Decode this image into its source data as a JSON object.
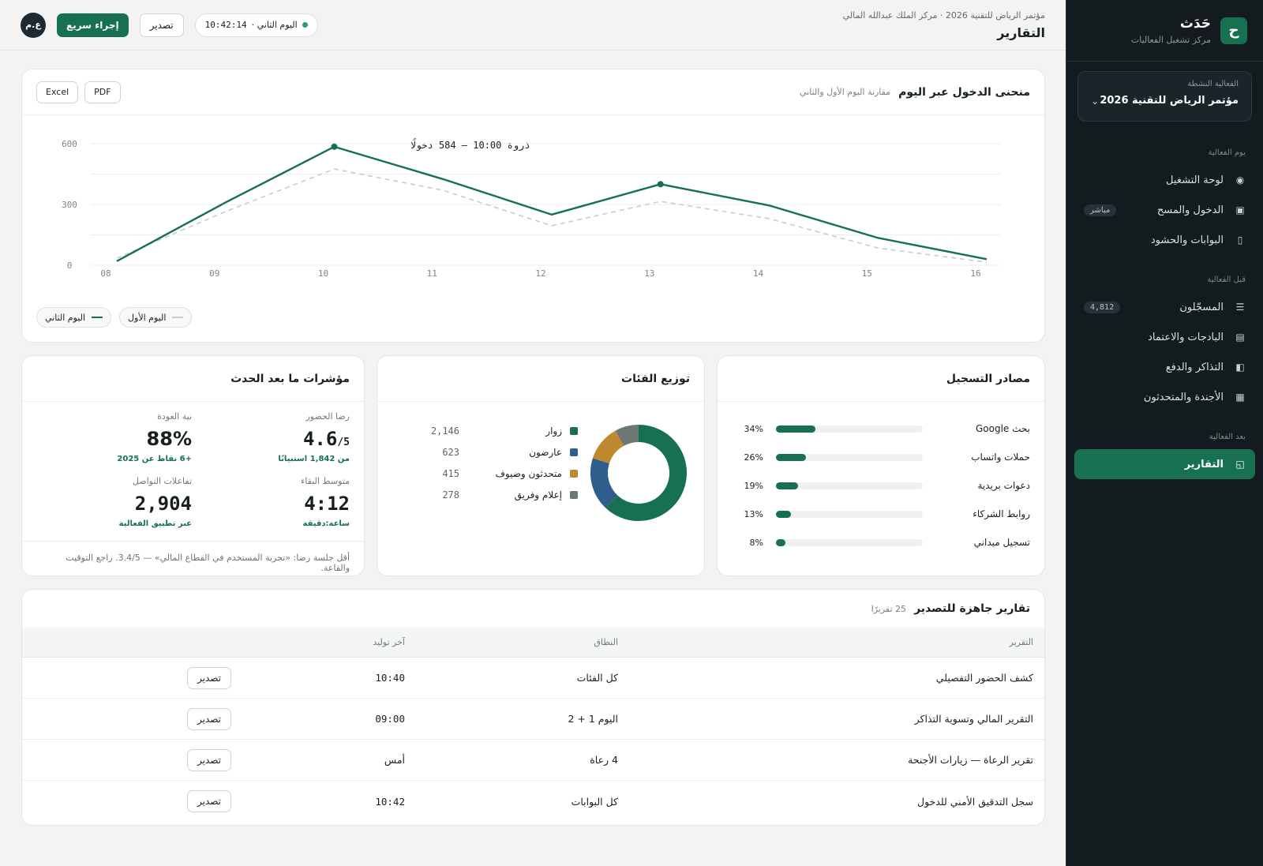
{
  "brand": {
    "logo_letter": "ح",
    "name": "حَدَث",
    "subtitle": "مركز تشغيل الفعاليات"
  },
  "event_select": {
    "label": "الفعالية النشطة",
    "value": "مؤتمر الرياض للتقنية 2026"
  },
  "nav": {
    "group_day": "يوم الفعالية",
    "group_before": "قبل الفعالية",
    "group_after": "بعد الفعالية",
    "dashboard": "لوحة التشغيل",
    "entry": "الدخول والمسح",
    "entry_badge": "مباشر",
    "gates": "البوابات والحشود",
    "registrants": "المسجّلون",
    "registrants_badge": "4,812",
    "badges": "البادجات والاعتماد",
    "tickets": "التذاكر والدفع",
    "agenda": "الأجندة والمتحدثون",
    "reports": "التقارير"
  },
  "topbar": {
    "breadcrumb": "مؤتمر الرياض للتقنية 2026 · مركز الملك عبدالله المالي",
    "title": "التقارير",
    "live_day": "اليوم الثاني ·",
    "live_time": "10:42:14",
    "export_label": "تصدير",
    "quick_action_label": "إجراء سريع",
    "avatar_initials": "ع.م"
  },
  "entry_chart": {
    "title": "منحنى الدخول عبر اليوم",
    "subtitle": "مقارنة اليوم الأول والثاني",
    "pdf_label": "PDF",
    "excel_label": "Excel",
    "peak_annotation": "ذروة 10:00 — 584 دخولًا",
    "legend_day2": "اليوم الثاني",
    "legend_day1": "اليوم الأول"
  },
  "chart_data": {
    "type": "line",
    "x": [
      "08",
      "09",
      "10",
      "11",
      "12",
      "13",
      "14",
      "15",
      "16"
    ],
    "yticks": [
      "0",
      "300",
      "600"
    ],
    "ylim": [
      0,
      600
    ],
    "series": [
      {
        "name": "اليوم الثاني",
        "values": [
          20,
          310,
          585,
          425,
          250,
          400,
          295,
          135,
          30
        ],
        "color": "#17704f",
        "markers": [
          2,
          5
        ]
      },
      {
        "name": "اليوم الأول",
        "values": [
          35,
          265,
          475,
          370,
          195,
          315,
          230,
          85,
          15
        ],
        "color": "#c9cdca"
      }
    ],
    "grid": true
  },
  "sources": {
    "title": "مصادر التسجيل",
    "items": [
      {
        "label": "بحث Google",
        "pct": "34%",
        "value": 0.34
      },
      {
        "label": "حملات واتساب",
        "pct": "26%",
        "value": 0.26
      },
      {
        "label": "دعوات بريدية",
        "pct": "19%",
        "value": 0.19
      },
      {
        "label": "روابط الشركاء",
        "pct": "13%",
        "value": 0.13
      },
      {
        "label": "تسجيل ميداني",
        "pct": "8%",
        "value": 0.08
      }
    ]
  },
  "categories": {
    "title": "توزيع الفئات",
    "items": [
      {
        "label": "زوار",
        "value": "2,146",
        "num": 2146,
        "color": "#17704f"
      },
      {
        "label": "عارضون",
        "value": "623",
        "num": 623,
        "color": "#2f5d8c"
      },
      {
        "label": "متحدثون وضيوف",
        "value": "415",
        "num": 415,
        "color": "#bf8a2e"
      },
      {
        "label": "إعلام وفريق",
        "value": "278",
        "num": 278,
        "color": "#6e7873"
      }
    ]
  },
  "post_event": {
    "title": "مؤشرات ما بعد الحدث",
    "satisfaction_label": "رضا الحضور",
    "satisfaction_value": "4.6",
    "satisfaction_suffix": "/5",
    "satisfaction_note": "من 1,842 استبيانًا",
    "return_label": "نية العودة",
    "return_value": "88%",
    "return_note": "+6 نقاط عن 2025",
    "stay_label": "متوسط البقاء",
    "stay_value": "4:12",
    "stay_note": "ساعة:دقيقة",
    "engagement_label": "تفاعلات التواصل",
    "engagement_value": "2,904",
    "engagement_note": "عبر تطبيق الفعالية",
    "footer_note": "أقل جلسة رضا: «تجربة المستخدم في القطاع المالي» — 3.4/5. راجع التوقيت والقاعة."
  },
  "reports_table": {
    "title": "تقارير جاهزة للتصدير",
    "count": "25 تقريرًا",
    "columns": {
      "report": "التقرير",
      "scope": "النطاق",
      "generated": "آخر توليد"
    },
    "export_label": "تصدير",
    "rows": [
      {
        "report": "كشف الحضور التفصيلي",
        "scope": "كل الفئات",
        "generated": "10:40"
      },
      {
        "report": "التقرير المالي وتسوية التذاكر",
        "scope": "اليوم 1 + 2",
        "generated": "09:00"
      },
      {
        "report": "تقرير الرعاة — زيارات الأجنحة",
        "scope": "4 رعاة",
        "generated": "أمس"
      },
      {
        "report": "سجل التدقيق الأمني للدخول",
        "scope": "كل البوابات",
        "generated": "10:42"
      }
    ]
  }
}
